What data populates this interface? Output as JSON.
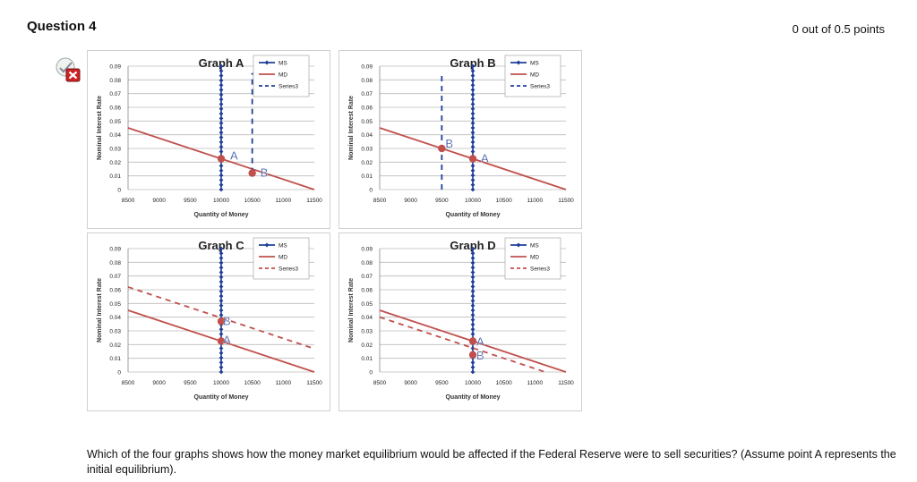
{
  "question": {
    "title": "Question 4",
    "score": "0 out of 0.5 points",
    "status_icon": "incorrect-x-icon",
    "text": "Which of the four graphs shows how the money market equilibrium would be affected if the Federal Reserve were to sell securities? (Assume point A represents the initial equilibrium)."
  },
  "colors": {
    "ms": "#1f3f99",
    "md": "#c0504d",
    "series3": "#c0504d",
    "grid": "#bbbbbb",
    "panel_border": "#d0d0d0",
    "incorrect": "#cc2222"
  },
  "chart_data": [
    {
      "type": "line",
      "title": "Graph A",
      "xlabel": "Quantity of Money",
      "ylabel": "Nominal Interest Rate",
      "xlim": [
        8500,
        11500
      ],
      "ylim": [
        0,
        0.09
      ],
      "xticks": [
        "8500",
        "9000",
        "9500",
        "10000",
        "10500",
        "11000",
        "11500"
      ],
      "yticks": [
        "0",
        "0.01",
        "0.02",
        "0.03",
        "0.04",
        "0.05",
        "0.06",
        "0.07",
        "0.08",
        "0.09"
      ],
      "grid": true,
      "legend_position": "top-right",
      "series": [
        {
          "name": "MS",
          "style": "marker-line",
          "points": [
            [
              10000,
              0.0
            ],
            [
              10000,
              0.09
            ]
          ]
        },
        {
          "name": "MD",
          "style": "solid",
          "points": [
            [
              8500,
              0.045
            ],
            [
              11500,
              0.0
            ]
          ]
        },
        {
          "name": "Series3",
          "style": "dashed",
          "points": [
            [
              10500,
              0.012
            ],
            [
              10500,
              0.085
            ]
          ]
        }
      ],
      "annotations": [
        {
          "label": "A",
          "x": 10000,
          "y": 0.0225
        },
        {
          "label": "B",
          "x": 10500,
          "y": 0.012
        }
      ],
      "dots": [
        [
          10000,
          0.0225
        ],
        [
          10500,
          0.012
        ]
      ]
    },
    {
      "type": "line",
      "title": "Graph B",
      "xlabel": "Quantity of Money",
      "ylabel": "Nominal Interest Rate",
      "xlim": [
        8500,
        11500
      ],
      "ylim": [
        0,
        0.09
      ],
      "xticks": [
        "8500",
        "9000",
        "9500",
        "10000",
        "10500",
        "11000",
        "11500"
      ],
      "yticks": [
        "0",
        "0.01",
        "0.02",
        "0.03",
        "0.04",
        "0.05",
        "0.06",
        "0.07",
        "0.08",
        "0.09"
      ],
      "grid": true,
      "legend_position": "top-right",
      "series": [
        {
          "name": "MS",
          "style": "marker-line",
          "points": [
            [
              10000,
              0.0
            ],
            [
              10000,
              0.09
            ]
          ]
        },
        {
          "name": "MD",
          "style": "solid",
          "points": [
            [
              8500,
              0.045
            ],
            [
              11500,
              0.0
            ]
          ]
        },
        {
          "name": "Series3",
          "style": "dashed",
          "points": [
            [
              9500,
              0.0
            ],
            [
              9500,
              0.085
            ]
          ]
        }
      ],
      "annotations": [
        {
          "label": "B",
          "x": 9500,
          "y": 0.03
        },
        {
          "label": "A",
          "x": 10000,
          "y": 0.0225
        }
      ],
      "dots": [
        [
          9500,
          0.03
        ],
        [
          10000,
          0.0225
        ]
      ]
    },
    {
      "type": "line",
      "title": "Graph C",
      "xlabel": "Quantity of Money",
      "ylabel": "Nominal Interest Rate",
      "xlim": [
        8500,
        11500
      ],
      "ylim": [
        0,
        0.09
      ],
      "xticks": [
        "8500",
        "9000",
        "9500",
        "10000",
        "10500",
        "11000",
        "11500"
      ],
      "yticks": [
        "0",
        "0.01",
        "0.02",
        "0.03",
        "0.04",
        "0.05",
        "0.06",
        "0.07",
        "0.08",
        "0.09"
      ],
      "grid": true,
      "legend_position": "top-right",
      "series": [
        {
          "name": "MS",
          "style": "marker-line",
          "points": [
            [
              10000,
              0.0
            ],
            [
              10000,
              0.09
            ]
          ]
        },
        {
          "name": "MD",
          "style": "solid",
          "points": [
            [
              8500,
              0.045
            ],
            [
              11500,
              0.0
            ]
          ]
        },
        {
          "name": "Series3",
          "style": "dashed",
          "points": [
            [
              8500,
              0.062
            ],
            [
              11500,
              0.017
            ]
          ]
        }
      ],
      "annotations": [
        {
          "label": "B",
          "x": 10000,
          "y": 0.037
        },
        {
          "label": "A",
          "x": 10000,
          "y": 0.0225
        }
      ],
      "dots": [
        [
          10000,
          0.037
        ],
        [
          10000,
          0.0225
        ]
      ]
    },
    {
      "type": "line",
      "title": "Graph D",
      "xlabel": "Quantity of Money",
      "ylabel": "Nominal Interest Rate",
      "xlim": [
        8500,
        11500
      ],
      "ylim": [
        0,
        0.09
      ],
      "xticks": [
        "8500",
        "9000",
        "9500",
        "10000",
        "10500",
        "11000",
        "11500"
      ],
      "yticks": [
        "0",
        "0.01",
        "0.02",
        "0.03",
        "0.04",
        "0.05",
        "0.06",
        "0.07",
        "0.08",
        "0.09"
      ],
      "grid": true,
      "legend_position": "top-right",
      "series": [
        {
          "name": "MS",
          "style": "marker-line",
          "points": [
            [
              10000,
              0.0
            ],
            [
              10000,
              0.09
            ]
          ]
        },
        {
          "name": "MD",
          "style": "solid",
          "points": [
            [
              8500,
              0.045
            ],
            [
              11500,
              0.0
            ]
          ]
        },
        {
          "name": "Series3",
          "style": "dashed",
          "points": [
            [
              8500,
              0.04
            ],
            [
              11500,
              -0.005
            ]
          ]
        }
      ],
      "annotations": [
        {
          "label": "A",
          "x": 10000,
          "y": 0.0225
        },
        {
          "label": "B",
          "x": 10000,
          "y": 0.0125
        }
      ],
      "dots": [
        [
          10000,
          0.0225
        ],
        [
          10000,
          0.0125
        ]
      ]
    }
  ]
}
